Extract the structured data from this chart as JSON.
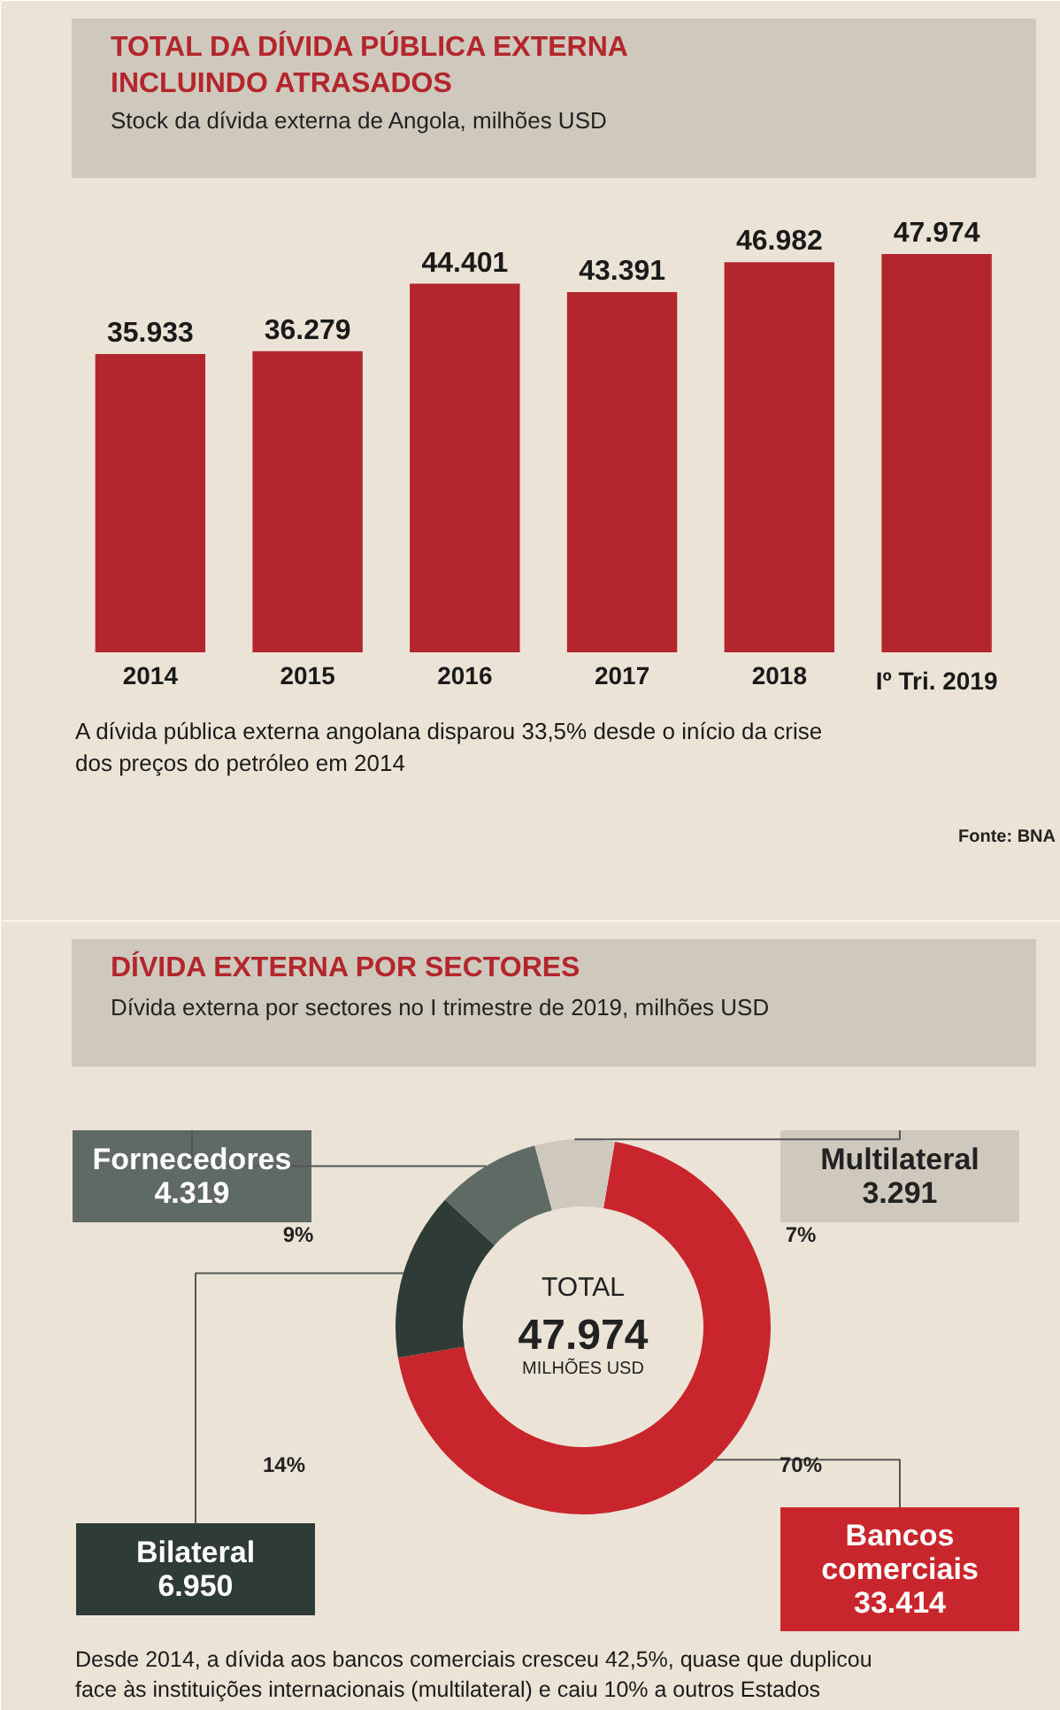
{
  "chart_data": [
    {
      "type": "bar",
      "title": "TOTAL DA DÍVIDA PÚBLICA EXTERNA INCLUINDO ATRASADOS",
      "subtitle": "Stock da dívida externa de Angola, milhões USD",
      "categories": [
        "2014",
        "2015",
        "2016",
        "2017",
        "2018",
        "Iº Tri. 2019"
      ],
      "values": [
        35933,
        36279,
        44401,
        43391,
        46982,
        47974
      ],
      "value_labels": [
        "35.933",
        "36.279",
        "44.401",
        "43.391",
        "46.982",
        "47.974"
      ],
      "color": "#b3262d",
      "annotations": [
        "A dívida pública externa angolana disparou 33,5% desde o início da crise dos preços do petróleo em 2014",
        "Fonte: BNA"
      ]
    },
    {
      "type": "donut",
      "title": "DÍVIDA EXTERNA POR SECTORES",
      "subtitle": "Dívida externa por sectores no I trimestre de 2019, milhões USD",
      "categories": [
        "Bancos comerciais",
        "Bilateral",
        "Fornecedores",
        "Multilateral"
      ],
      "values": [
        33414,
        6950,
        4319,
        3291
      ],
      "value_labels": [
        "33.414",
        "6.950",
        "4.319",
        "3.291"
      ],
      "colors": [
        "#c9252c",
        "#2f3b36",
        "#5f6a64",
        "#cfc8bd"
      ],
      "annotations": [
        {
          "text": "70%",
          "x": "Bancos comerciais"
        },
        {
          "text": "14%",
          "x": "Bilateral"
        },
        {
          "text": "9%",
          "x": "Fornecedores"
        },
        {
          "text": "7%",
          "x": "Multilateral"
        },
        "TOTAL",
        "47.974",
        "MILHÕES USD",
        "Desde 2014, a dívida aos bancos comerciais cresceu 42,5%, quase que duplicou face às instituições internacionais (multilateral) e caiu 10% a outros Estados"
      ]
    }
  ]
}
